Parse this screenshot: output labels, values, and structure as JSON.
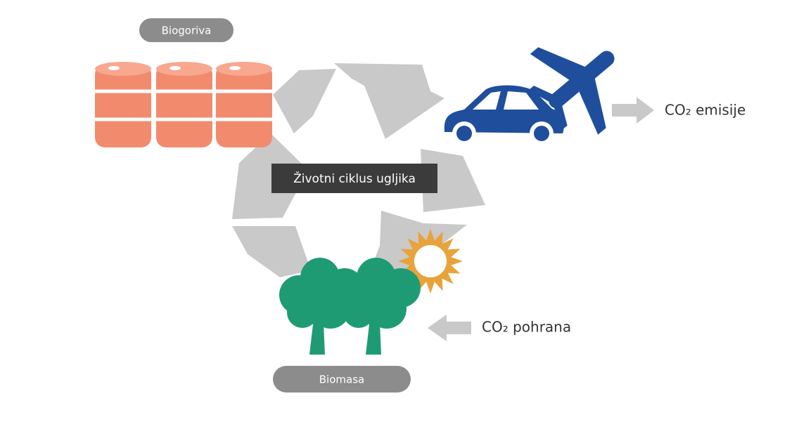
{
  "labels": {
    "biofuels": "Biogoriva",
    "cycle": "Životni ciklus ugljika",
    "biomass": "Biomasa",
    "emissions": "CO₂ emisije",
    "storage": "CO₂ pohrana"
  }
}
